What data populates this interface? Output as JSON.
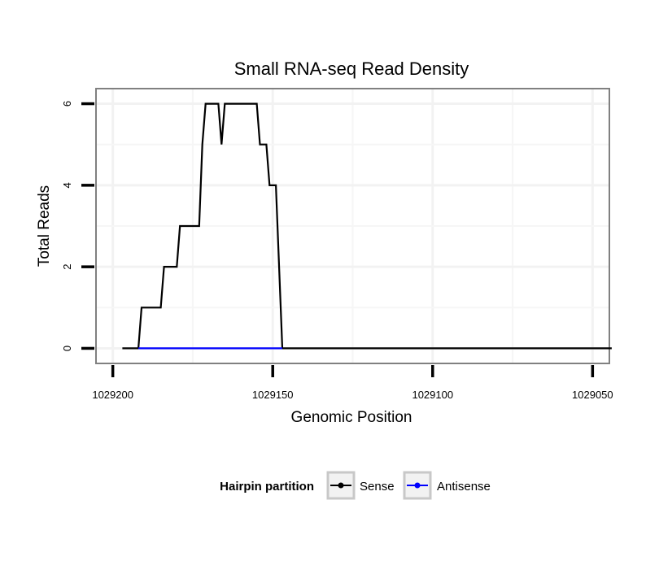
{
  "chart_data": {
    "type": "line",
    "title": "Small RNA-seq Read Density",
    "xlabel": "Genomic Position",
    "ylabel": "Total Reads",
    "x_reversed": true,
    "xlim": [
      1029205,
      1029045
    ],
    "ylim": [
      -0.35,
      6.35
    ],
    "x_ticks": [
      1029200,
      1029150,
      1029100,
      1029050
    ],
    "x_tick_labels": [
      "1029200",
      "1029150",
      "1029100",
      "1029050"
    ],
    "y_ticks": [
      0,
      2,
      4,
      6
    ],
    "y_tick_labels": [
      "0",
      "2",
      "4",
      "6"
    ],
    "grid": true,
    "legend": {
      "title": "Hairpin partition",
      "position": "bottom",
      "entries": [
        "Sense",
        "Antisense"
      ]
    },
    "series": [
      {
        "name": "Sense",
        "color": "#000000",
        "points": [
          [
            1029197,
            0
          ],
          [
            1029192,
            0
          ],
          [
            1029191,
            1
          ],
          [
            1029185,
            1
          ],
          [
            1029184,
            2
          ],
          [
            1029180,
            2
          ],
          [
            1029179,
            3
          ],
          [
            1029173,
            3
          ],
          [
            1029172,
            5
          ],
          [
            1029171,
            6
          ],
          [
            1029167,
            6
          ],
          [
            1029166,
            5
          ],
          [
            1029165,
            6
          ],
          [
            1029155,
            6
          ],
          [
            1029154,
            5
          ],
          [
            1029152,
            5
          ],
          [
            1029151,
            4
          ],
          [
            1029149,
            4
          ],
          [
            1029147,
            0
          ],
          [
            1029044,
            0
          ]
        ]
      },
      {
        "name": "Antisense",
        "color": "#0000ff",
        "points": [
          [
            1029192,
            0
          ],
          [
            1029147,
            0
          ]
        ]
      }
    ]
  }
}
